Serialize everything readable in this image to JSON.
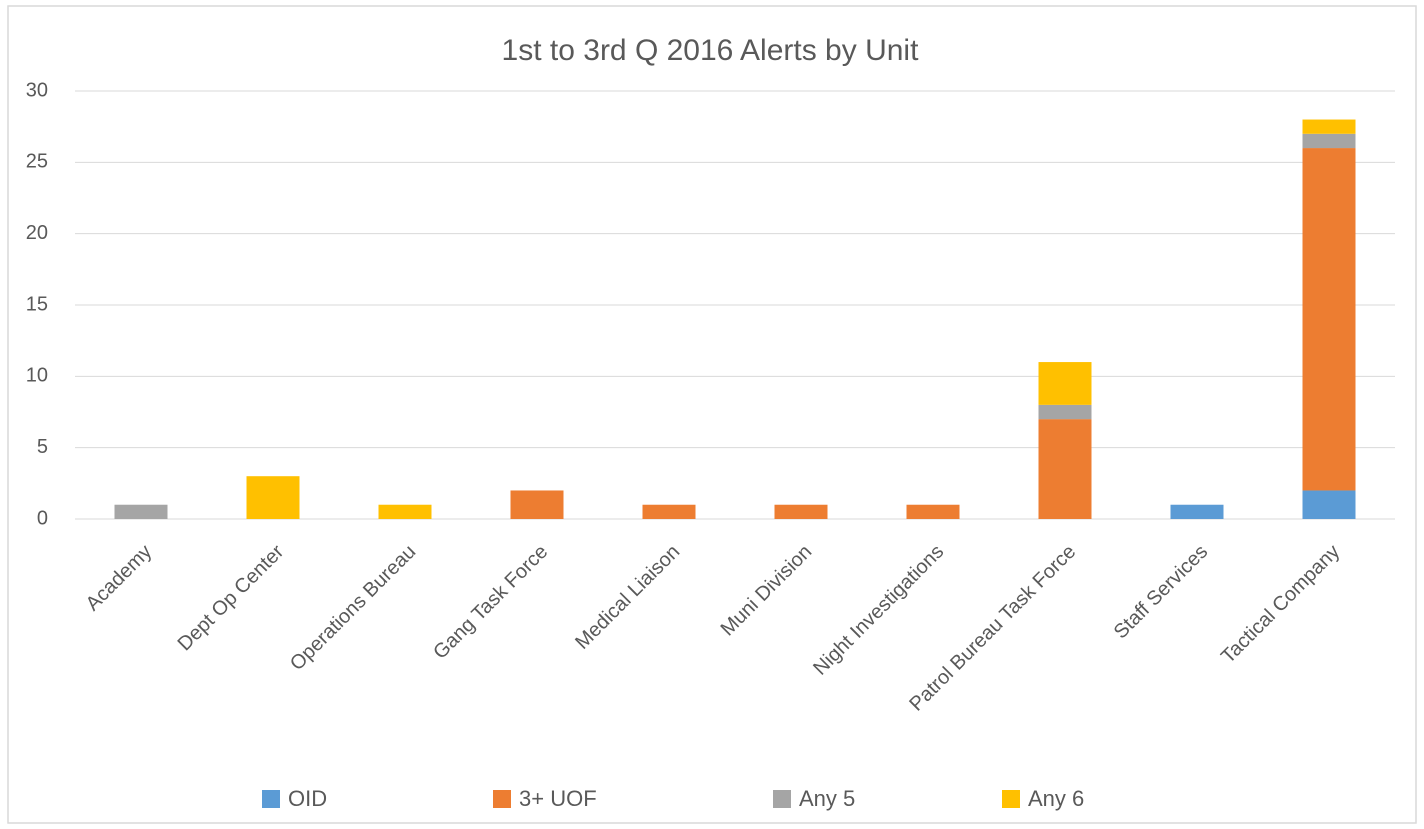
{
  "chart_data": {
    "type": "stacked_bar",
    "title": "1st to 3rd Q 2016 Alerts by Unit",
    "categories": [
      "Academy",
      "Dept Op Center",
      "Operations Bureau",
      "Gang Task Force",
      "Medical Liaison",
      "Muni Division",
      "Night Investigations",
      "Patrol Bureau Task Force",
      "Staff Services",
      "Tactical Company"
    ],
    "series": [
      {
        "name": "OID",
        "color": "#5b9bd5",
        "values": [
          0,
          0,
          0,
          0,
          0,
          0,
          0,
          0,
          1,
          2
        ]
      },
      {
        "name": "3+ UOF",
        "color": "#ed7d31",
        "values": [
          0,
          0,
          0,
          2,
          1,
          1,
          1,
          7,
          0,
          24
        ]
      },
      {
        "name": "Any 5",
        "color": "#a5a5a5",
        "values": [
          1,
          0,
          0,
          0,
          0,
          0,
          0,
          1,
          0,
          1
        ]
      },
      {
        "name": "Any 6",
        "color": "#ffc000",
        "values": [
          0,
          3,
          1,
          0,
          0,
          0,
          0,
          3,
          0,
          1
        ]
      }
    ],
    "ylim": [
      0,
      30
    ],
    "yticks": [
      0,
      5,
      10,
      15,
      20,
      25,
      30
    ],
    "grid": true,
    "legend": "bottom"
  }
}
